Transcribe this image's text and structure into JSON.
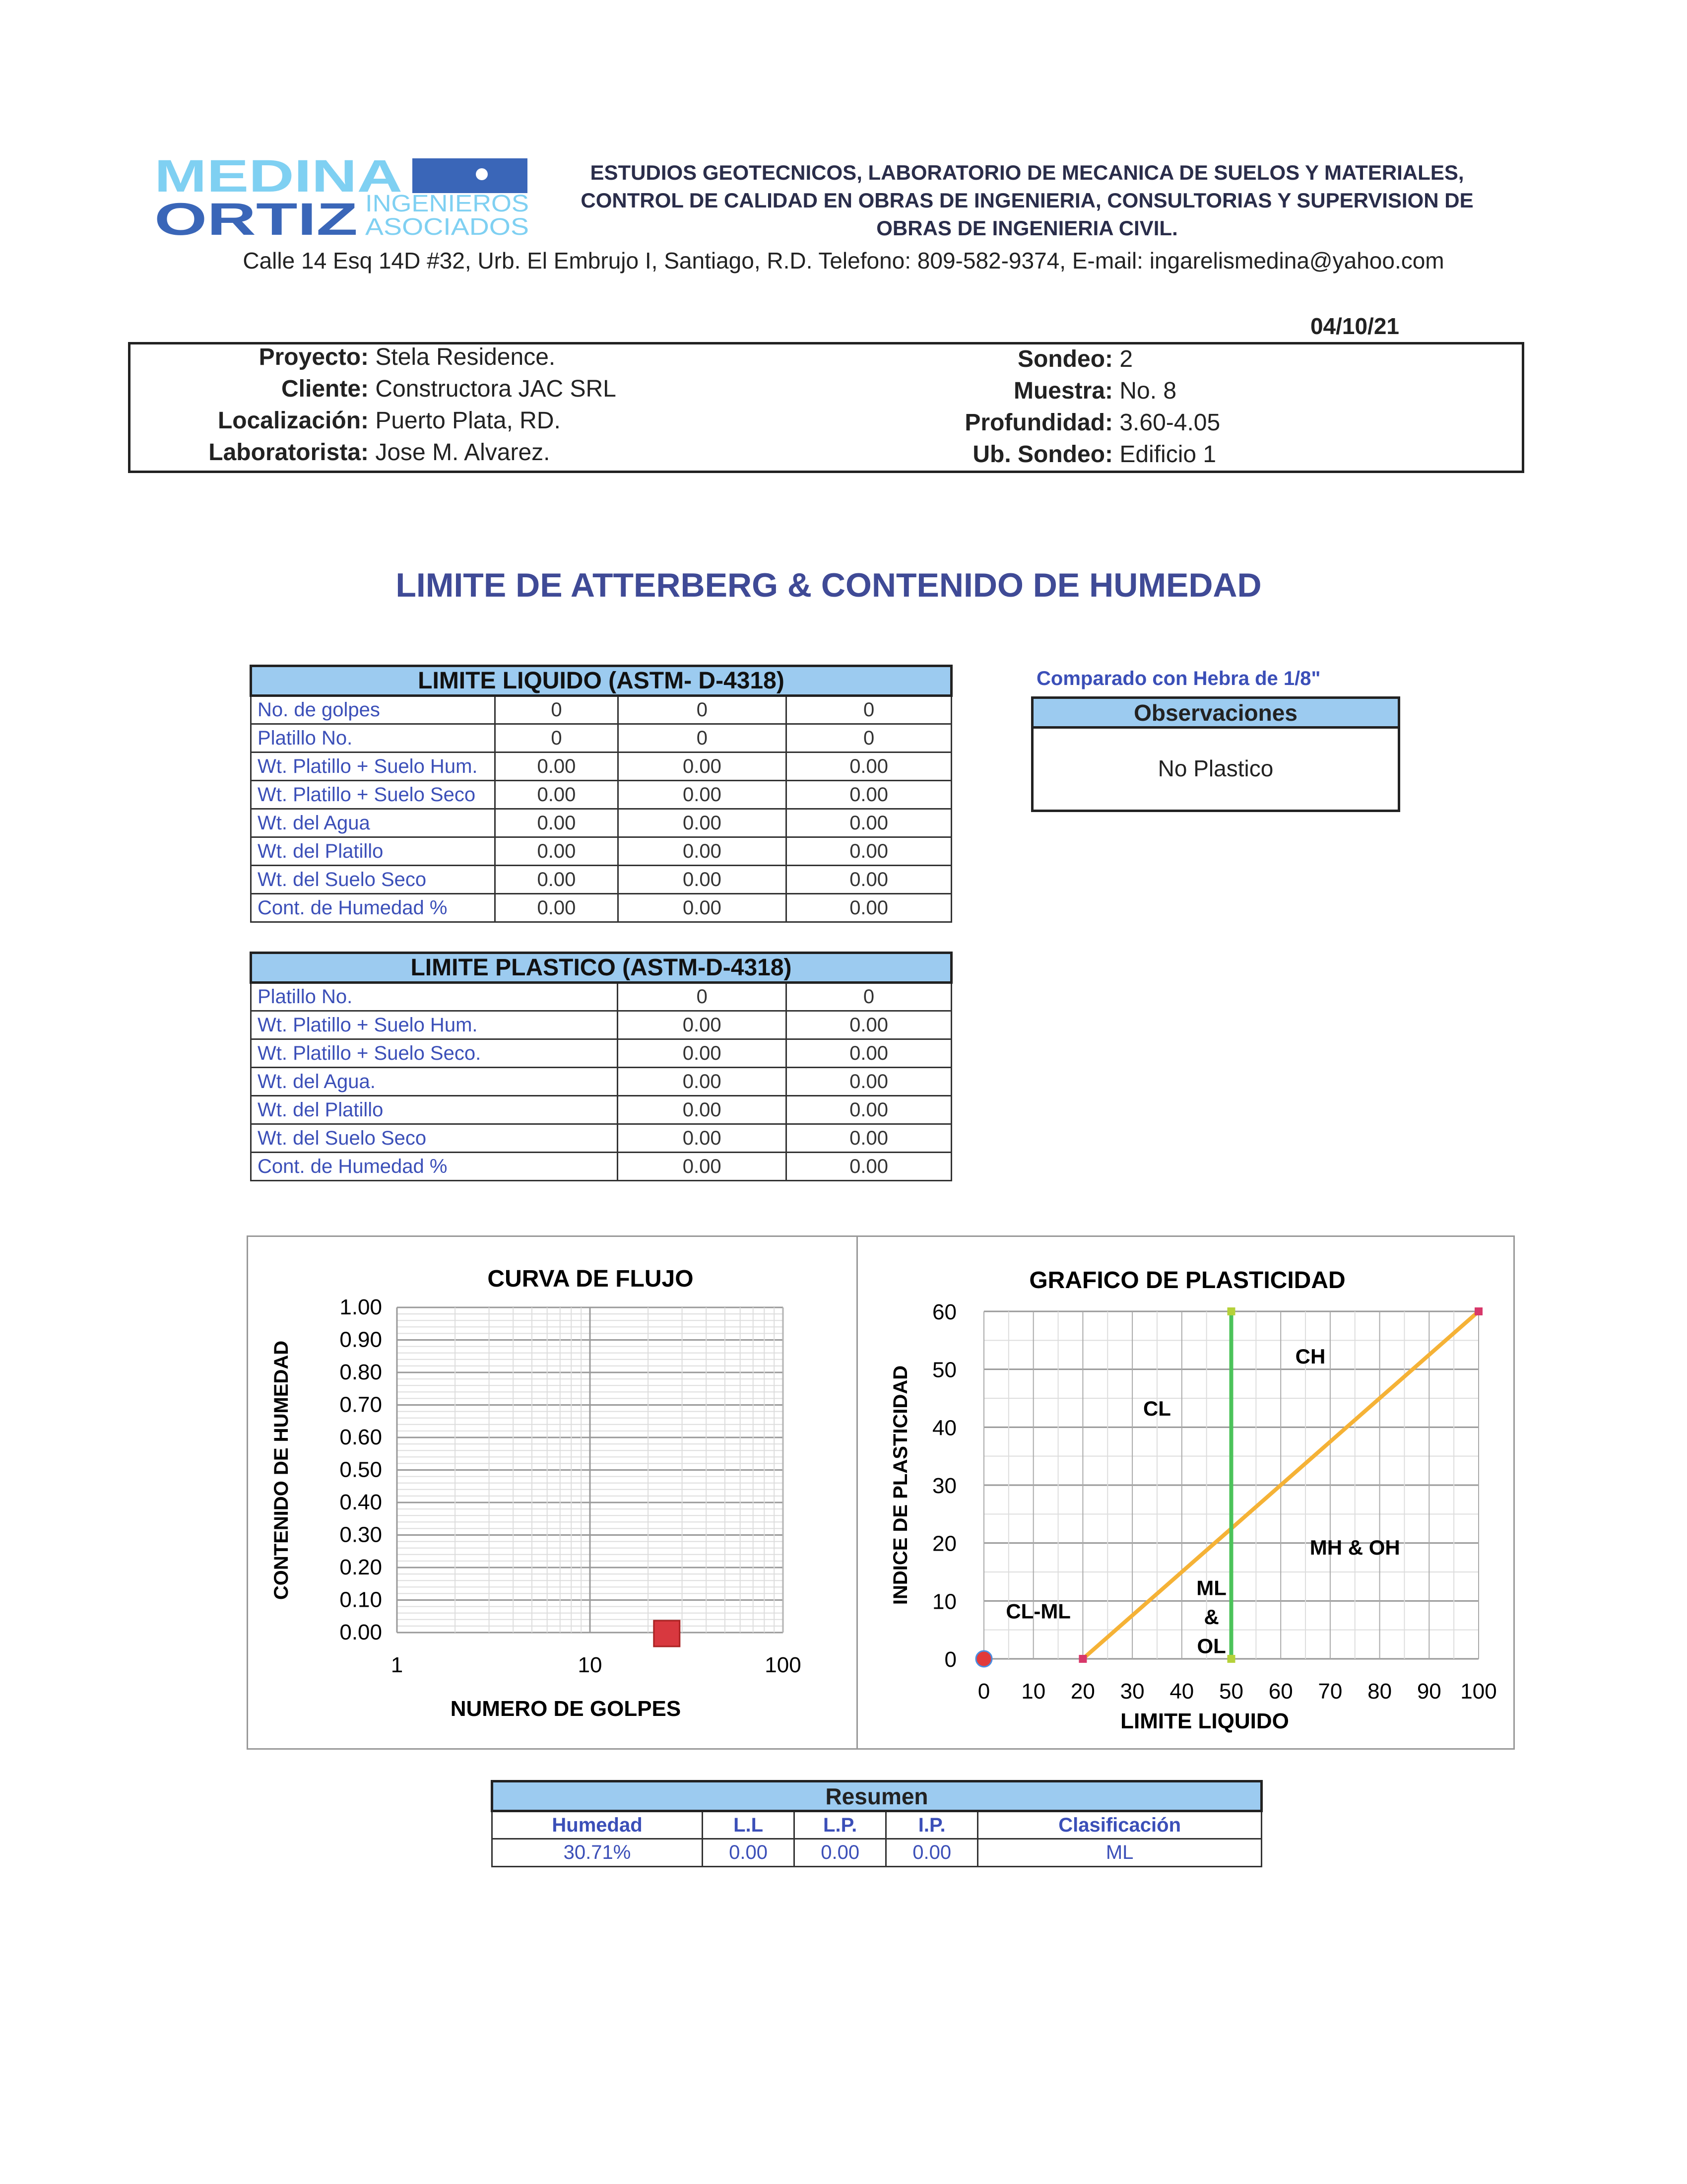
{
  "logo": {
    "line1": "MEDINA",
    "line2": "ORTIZ",
    "line3": "INGENIEROS",
    "line4": "ASOCIADOS"
  },
  "header": {
    "line1": "ESTUDIOS GEOTECNICOS, LABORATORIO DE MECANICA DE SUELOS Y MATERIALES,",
    "line2": "CONTROL DE CALIDAD EN OBRAS DE INGENIERIA, CONSULTORIAS Y SUPERVISION DE",
    "line3": "OBRAS DE INGENIERIA CIVIL.",
    "address": "Calle 14 Esq 14D #32, Urb. El Embrujo I, Santiago, R.D. Telefono: 809-582-9374, E-mail: ingarelismedina@yahoo.com"
  },
  "date": "04/10/21",
  "info": {
    "left": [
      {
        "label": "Proyecto:",
        "value": "Stela Residence."
      },
      {
        "label": "Cliente:",
        "value": "Constructora JAC SRL"
      },
      {
        "label": "Localización:",
        "value": "Puerto Plata, RD."
      },
      {
        "label": "Laboratorista:",
        "value": "Jose M. Alvarez."
      }
    ],
    "right": [
      {
        "label": "Sondeo:",
        "value": "2"
      },
      {
        "label": "Muestra:",
        "value": "No. 8"
      },
      {
        "label": "Profundidad:",
        "value": "3.60-4.05"
      },
      {
        "label": "Ub. Sondeo:",
        "value": "Edificio 1"
      }
    ]
  },
  "title": "LIMITE DE ATTERBERG & CONTENIDO DE HUMEDAD",
  "ll_table": {
    "title": "LIMITE LIQUIDO (ASTM- D-4318)",
    "rows": [
      {
        "label": "No. de golpes",
        "values": [
          "0",
          "0",
          "0"
        ]
      },
      {
        "label": "Platillo No.",
        "values": [
          "0",
          "0",
          "0"
        ]
      },
      {
        "label": "Wt. Platillo + Suelo Hum.",
        "values": [
          "0.00",
          "0.00",
          "0.00"
        ]
      },
      {
        "label": "Wt. Platillo + Suelo Seco",
        "values": [
          "0.00",
          "0.00",
          "0.00"
        ]
      },
      {
        "label": "Wt. del Agua",
        "values": [
          "0.00",
          "0.00",
          "0.00"
        ]
      },
      {
        "label": "Wt. del Platillo",
        "values": [
          "0.00",
          "0.00",
          "0.00"
        ]
      },
      {
        "label": "Wt. del Suelo Seco",
        "values": [
          "0.00",
          "0.00",
          "0.00"
        ]
      },
      {
        "label": "Cont. de Humedad %",
        "values": [
          "0.00",
          "0.00",
          "0.00"
        ]
      }
    ]
  },
  "pl_table": {
    "title": "LIMITE PLASTICO (ASTM-D-4318)",
    "rows": [
      {
        "label": "Platillo No.",
        "values": [
          "0",
          "0"
        ]
      },
      {
        "label": "Wt. Platillo + Suelo Hum.",
        "values": [
          "0.00",
          "0.00"
        ]
      },
      {
        "label": "Wt. Platillo + Suelo Seco.",
        "values": [
          "0.00",
          "0.00"
        ]
      },
      {
        "label": "Wt. del Agua.",
        "values": [
          "0.00",
          "0.00"
        ]
      },
      {
        "label": "Wt. del Platillo",
        "values": [
          "0.00",
          "0.00"
        ]
      },
      {
        "label": "Wt. del Suelo Seco",
        "values": [
          "0.00",
          "0.00"
        ]
      },
      {
        "label": "Cont. de Humedad %",
        "values": [
          "0.00",
          "0.00"
        ]
      }
    ]
  },
  "observaciones": {
    "caption": "Comparado con Hebra de 1/8\"",
    "header": "Observaciones",
    "text": "No Plastico"
  },
  "chart_data": [
    {
      "type": "scatter",
      "title": "CURVA DE FLUJO",
      "xlabel": "NUMERO DE GOLPES",
      "ylabel": "CONTENIDO DE HUMEDAD",
      "xscale": "log",
      "xlim": [
        1,
        100
      ],
      "ylim": [
        0,
        1
      ],
      "grid": true,
      "xticks": [
        "1",
        "10",
        "100"
      ],
      "yticks": [
        "0.00",
        "0.10",
        "0.20",
        "0.30",
        "0.40",
        "0.50",
        "0.60",
        "0.70",
        "0.80",
        "0.90",
        "1.00"
      ],
      "points": [
        {
          "x": 25,
          "y": 0,
          "marker": "square",
          "color": "#d8383f"
        }
      ]
    },
    {
      "type": "line",
      "title": "GRAFICO DE PLASTICIDAD",
      "xlabel": "LIMITE LIQUIDO",
      "ylabel": "INDICE DE PLASTICIDAD",
      "xlim": [
        0,
        100
      ],
      "ylim": [
        0,
        60
      ],
      "grid": true,
      "xticks": [
        "0",
        "10",
        "20",
        "30",
        "40",
        "50",
        "60",
        "70",
        "80",
        "90",
        "100"
      ],
      "yticks": [
        "0",
        "10",
        "20",
        "30",
        "40",
        "50",
        "60"
      ],
      "series": [
        {
          "points": [
            [
              20,
              0
            ],
            [
              100,
              60
            ]
          ],
          "color": "#f5b236"
        },
        {
          "points": [
            [
              50,
              0
            ],
            [
              50,
              60
            ]
          ],
          "color": "#4cc35a"
        }
      ],
      "points": [
        {
          "x": 0,
          "y": 0,
          "marker": "circle",
          "color": "#e23a3a"
        }
      ],
      "zones": [
        {
          "label": "CH",
          "x": 66,
          "y": 51
        },
        {
          "label": "CL",
          "x": 35,
          "y": 42
        },
        {
          "label": "MH & OH",
          "x": 75,
          "y": 18
        },
        {
          "label": "CL-ML",
          "x": 11,
          "y": 7
        },
        {
          "label": "ML",
          "x": 46,
          "y": 11
        },
        {
          "label": "&",
          "x": 46,
          "y": 6
        },
        {
          "label": "OL",
          "x": 46,
          "y": 1
        }
      ]
    }
  ],
  "resumen": {
    "title": "Resumen",
    "headers": [
      "Humedad",
      "L.L",
      "L.P.",
      "I.P.",
      "Clasificación"
    ],
    "values": [
      "30.71%",
      "0.00",
      "0.00",
      "0.00",
      "ML"
    ]
  }
}
